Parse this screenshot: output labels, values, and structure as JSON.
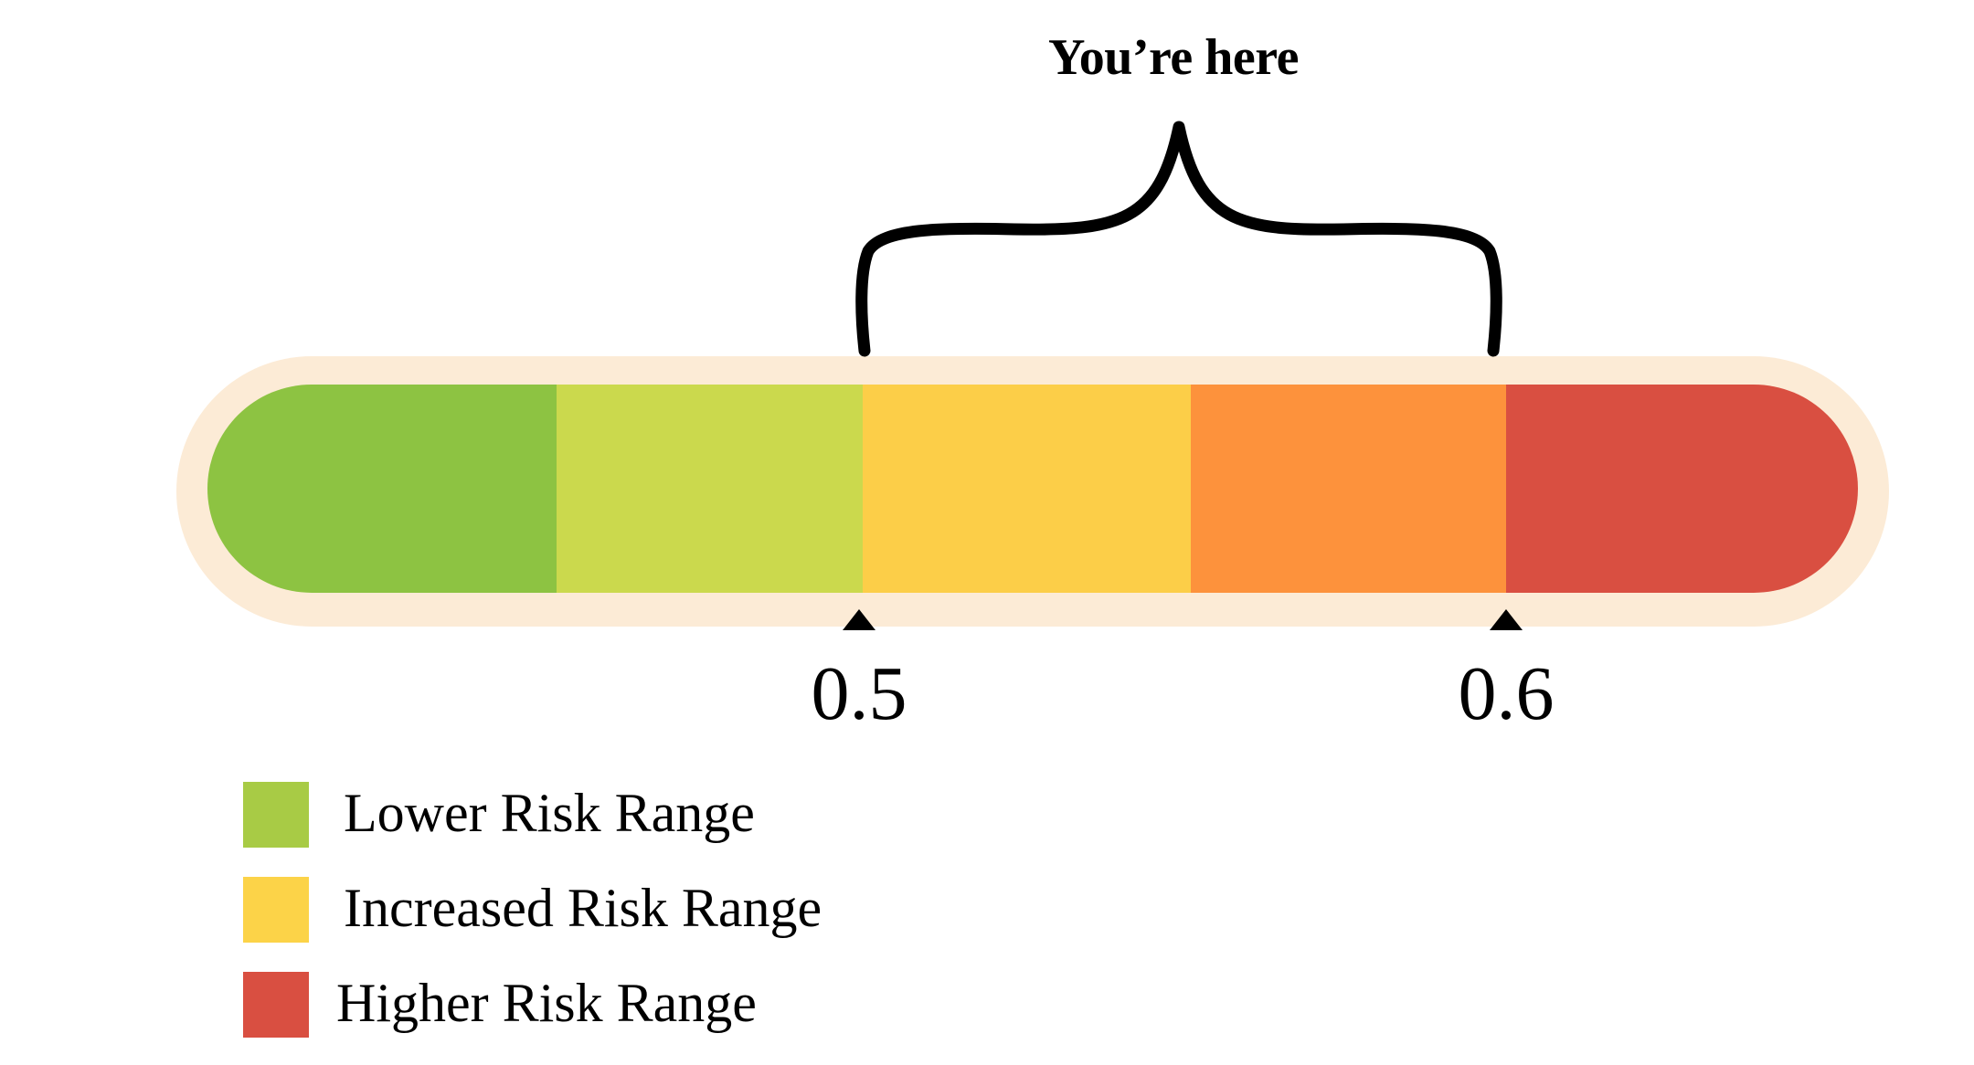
{
  "callout": {
    "label": "You’re here"
  },
  "scale": {
    "segments": [
      {
        "name": "segment-dark-green",
        "color": "#8dc342"
      },
      {
        "name": "segment-light-green",
        "color": "#cbd94d"
      },
      {
        "name": "segment-yellow",
        "color": "#fcce48"
      },
      {
        "name": "segment-orange",
        "color": "#fd923c"
      },
      {
        "name": "segment-red",
        "color": "#d94f41"
      }
    ],
    "frame_color": "#fcebd6",
    "markers": [
      {
        "label": "0.5"
      },
      {
        "label": "0.6"
      }
    ]
  },
  "legend": {
    "items": [
      {
        "label": "Lower Risk Range",
        "color": "#a8cb45"
      },
      {
        "label": "Increased Risk Range",
        "color": "#fcd348"
      },
      {
        "label": "Higher Risk Range",
        "color": "#d94f41"
      }
    ]
  }
}
